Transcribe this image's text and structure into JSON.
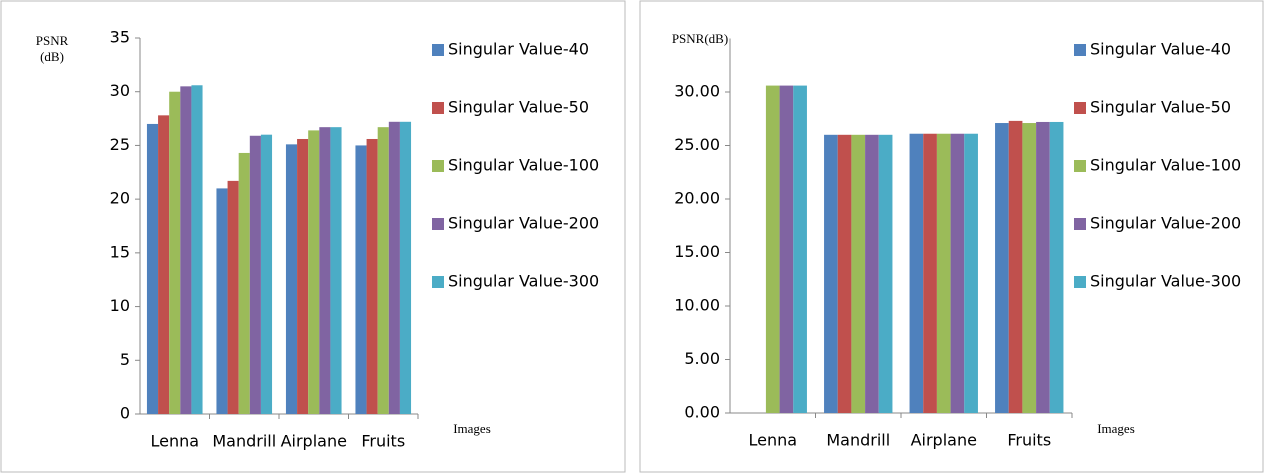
{
  "chart_data": [
    {
      "type": "bar",
      "y_label": [
        "PSNR",
        "(dB)"
      ],
      "x_label": "Images",
      "categories": [
        "Lenna",
        "Mandrill",
        "Airplane",
        "Fruits"
      ],
      "series": [
        {
          "name": "Singular Value-40",
          "color": "#4f81bd",
          "values": [
            27,
            21,
            25.1,
            25
          ]
        },
        {
          "name": "Singular Value-50",
          "color": "#c0504d",
          "values": [
            27.8,
            21.7,
            25.6,
            25.6
          ]
        },
        {
          "name": "Singular Value-100",
          "color": "#9bbb59",
          "values": [
            30,
            24.3,
            26.4,
            26.7
          ]
        },
        {
          "name": "Singular Value-200",
          "color": "#8064a2",
          "values": [
            30.5,
            25.9,
            26.7,
            27.2
          ]
        },
        {
          "name": "Singular Value-300",
          "color": "#4bacc6",
          "values": [
            30.6,
            26,
            26.7,
            27.2
          ]
        }
      ],
      "ylim": [
        0,
        35
      ],
      "yticks": [
        0,
        5,
        10,
        15,
        20,
        25,
        30,
        35
      ],
      "legend": "right"
    },
    {
      "type": "bar",
      "y_label": [
        "PSNR(dB)"
      ],
      "x_label": "Images",
      "categories": [
        "Lenna",
        "Mandrill",
        "Airplane",
        "Fruits"
      ],
      "series": [
        {
          "name": "Singular Value-40",
          "color": "#4f81bd",
          "values": [
            null,
            26,
            26.1,
            27.1
          ]
        },
        {
          "name": "Singular Value-50",
          "color": "#c0504d",
          "values": [
            null,
            26,
            26.1,
            27.3
          ]
        },
        {
          "name": "Singular Value-100",
          "color": "#9bbb59",
          "values": [
            30.6,
            26,
            26.1,
            27.1
          ]
        },
        {
          "name": "Singular Value-200",
          "color": "#8064a2",
          "values": [
            30.6,
            26,
            26.1,
            27.2
          ]
        },
        {
          "name": "Singular Value-300",
          "color": "#4bacc6",
          "values": [
            30.6,
            26,
            26.1,
            27.2
          ]
        }
      ],
      "ylim": [
        0,
        35
      ],
      "yticks": [
        {
          "value": 0,
          "label": "0.00"
        },
        {
          "value": 5,
          "label": "5.00"
        },
        {
          "value": 10,
          "label": "10.00"
        },
        {
          "value": 15,
          "label": "15.00"
        },
        {
          "value": 20,
          "label": "20.00"
        },
        {
          "value": 25,
          "label": "25.00"
        },
        {
          "value": 30,
          "label": "30.00"
        }
      ],
      "legend": "right"
    }
  ]
}
